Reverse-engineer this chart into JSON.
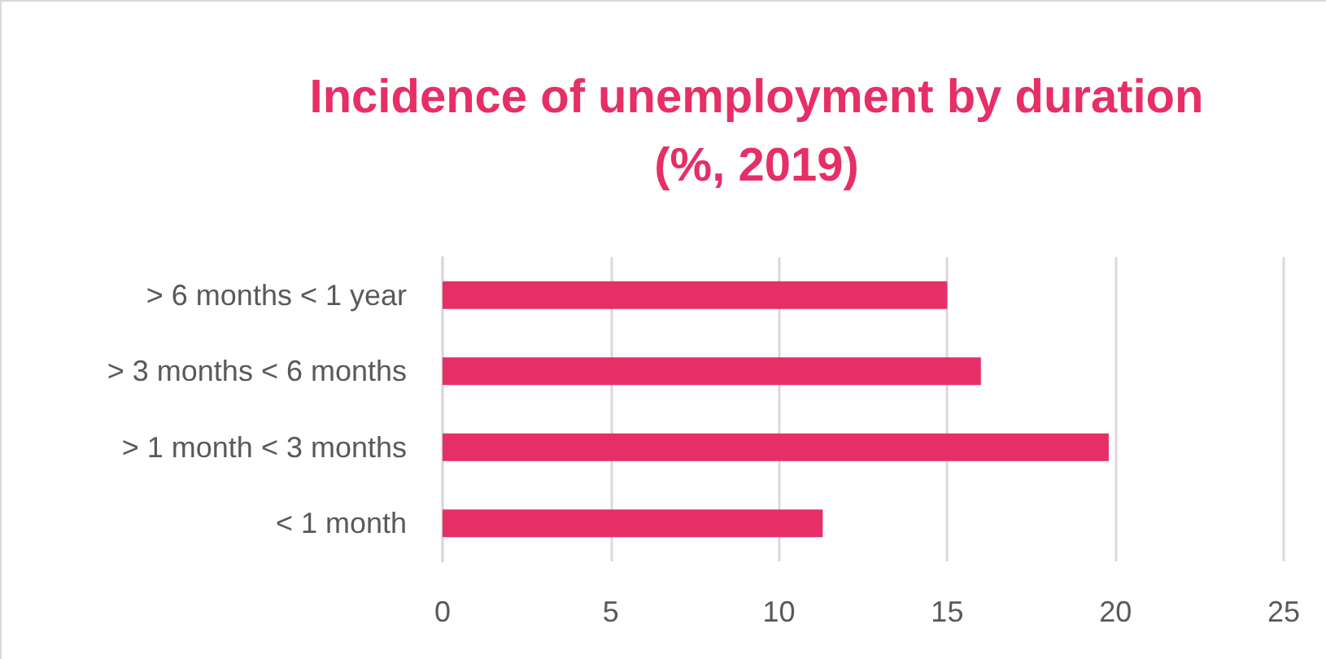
{
  "chart_data": {
    "type": "bar",
    "orientation": "horizontal",
    "title": "Incidence of unemployment by duration\n(%, 2019)",
    "categories": [
      "> 6 months < 1 year",
      "> 3 months < 6 months",
      "> 1 month < 3 months",
      "< 1 month"
    ],
    "values": [
      15.0,
      16.0,
      19.8,
      11.3
    ],
    "color": "#e62e67",
    "xlim": [
      0,
      25
    ],
    "xticks": [
      0,
      5,
      10,
      15,
      20,
      25
    ],
    "grid": "x"
  }
}
